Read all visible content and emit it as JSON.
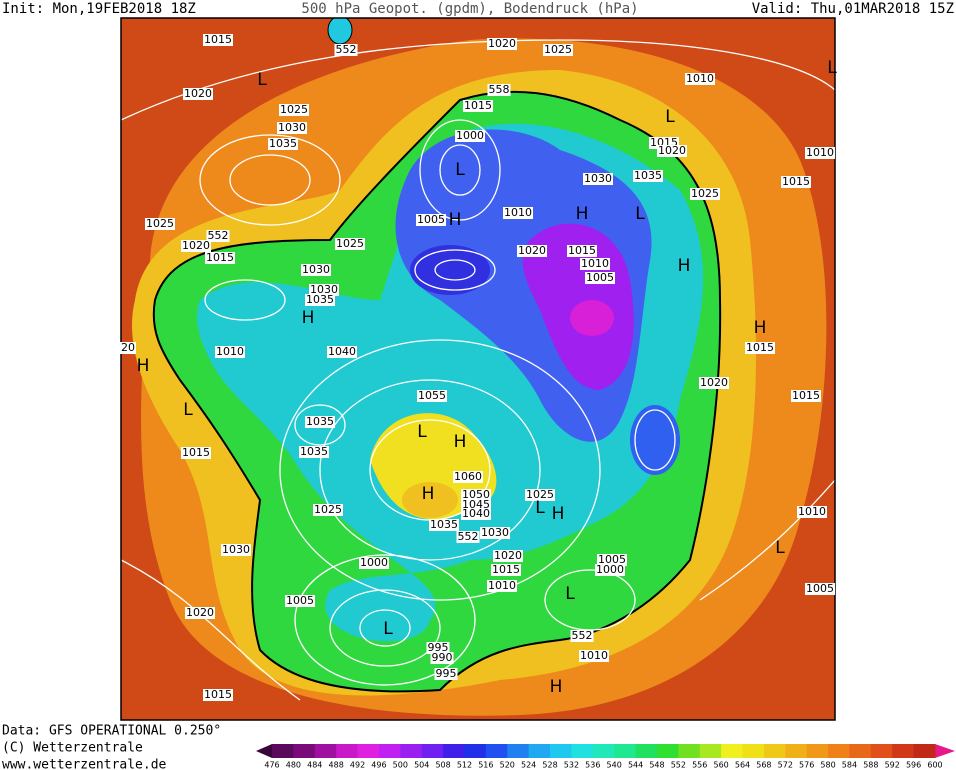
{
  "header": {
    "init": "Init: Mon,19FEB2018 18Z",
    "title": "500 hPa Geopot. (gpdm), Bodendruck (hPa)",
    "valid": "Valid: Thu,01MAR2018 15Z"
  },
  "footer": {
    "data": "Data: GFS OPERATIONAL 0.250°",
    "copyright": "(C) Wetterzentrale",
    "url": "www.wetterzentrale.de"
  },
  "scale": {
    "labels": [
      "476",
      "480",
      "484",
      "488",
      "492",
      "496",
      "500",
      "504",
      "508",
      "512",
      "516",
      "520",
      "524",
      "528",
      "532",
      "536",
      "540",
      "544",
      "548",
      "552",
      "556",
      "560",
      "564",
      "568",
      "572",
      "576",
      "580",
      "584",
      "588",
      "592",
      "596",
      "600"
    ],
    "colors": [
      "#5a0a5a",
      "#7a0a7a",
      "#a010a0",
      "#c818c8",
      "#e020e0",
      "#c020f0",
      "#9a20f0",
      "#7020f0",
      "#4020e8",
      "#2030e8",
      "#2050f0",
      "#2080f0",
      "#20a8f0",
      "#20c8f0",
      "#20e0e0",
      "#20e8b8",
      "#20e890",
      "#20e060",
      "#30e030",
      "#70e020",
      "#a8e820",
      "#f0f020",
      "#f0e018",
      "#f0c818",
      "#f0b018",
      "#f09818",
      "#f08018",
      "#e86818",
      "#e05018",
      "#d03818",
      "#c02818"
    ]
  },
  "map": {
    "labels": [
      "1015",
      "552",
      "L",
      "1020",
      "1025",
      "1030",
      "1035",
      "1020",
      "1025",
      "558",
      "1015",
      "1010",
      "L",
      "1000",
      "1015",
      "1020",
      "1010",
      "L",
      "1030",
      "1035",
      "1015",
      "1025",
      "1005",
      "H",
      "1010",
      "H",
      "L",
      "1025",
      "552",
      "1020",
      "1025",
      "1020",
      "1015",
      "1010",
      "1005",
      "H",
      "1015",
      "1030",
      "1030",
      "1035",
      "H",
      "H",
      "20",
      "1010",
      "1040",
      "1015",
      "H",
      "1020",
      "1055",
      "1015",
      "L",
      "1035",
      "L",
      "H",
      "1035",
      "1015",
      "1060",
      "H",
      "1050",
      "1025",
      "1045",
      "1040",
      "L",
      "H",
      "1025",
      "1010",
      "1035",
      "1030",
      "552",
      "1030",
      "L",
      "1020",
      "1005",
      "1000",
      "1015",
      "1000",
      "1010",
      "1005",
      "L",
      "1005",
      "1020",
      "L",
      "552",
      "995",
      "990",
      "1010",
      "995",
      "H",
      "1015",
      "L"
    ]
  }
}
